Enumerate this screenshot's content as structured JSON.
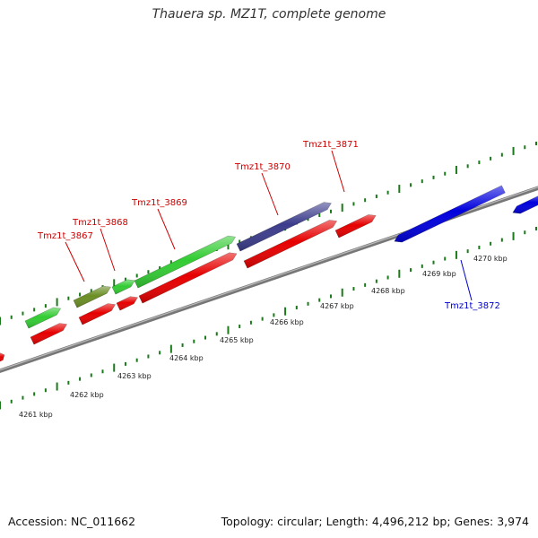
{
  "title": "Thauera sp. MZ1T, complete genome",
  "accession_text": "Accession: NC_011662",
  "topology_text": "Topology: circular; Length: 4,496,212 bp; Genes: 3,974",
  "scale_labels": [
    "4261 kbp",
    "4262 kbp",
    "4263 kbp",
    "4264 kbp",
    "4265 kbp",
    "4266 kbp",
    "4267 kbp",
    "4268 kbp",
    "4269 kbp",
    "4270 kbp"
  ],
  "gene_labels": [
    {
      "name": "Tmz1t_3867",
      "color": "#cc0000"
    },
    {
      "name": "Tmz1t_3868",
      "color": "#cc0000"
    },
    {
      "name": "Tmz1t_3869",
      "color": "#cc0000"
    },
    {
      "name": "Tmz1t_3870",
      "color": "#cc0000"
    },
    {
      "name": "Tmz1t_3871",
      "color": "#cc0000"
    },
    {
      "name": "Tmz1t_3872",
      "color": "#0000cc"
    }
  ],
  "colors": {
    "cds_red": "#e60000",
    "gene_green": "#33cc33",
    "olive": "#6b8e23",
    "navy": "#3c3c8c",
    "reverse_blue": "#0000dd",
    "tick_green": "#1a7a1a",
    "backbone": "#777777"
  }
}
